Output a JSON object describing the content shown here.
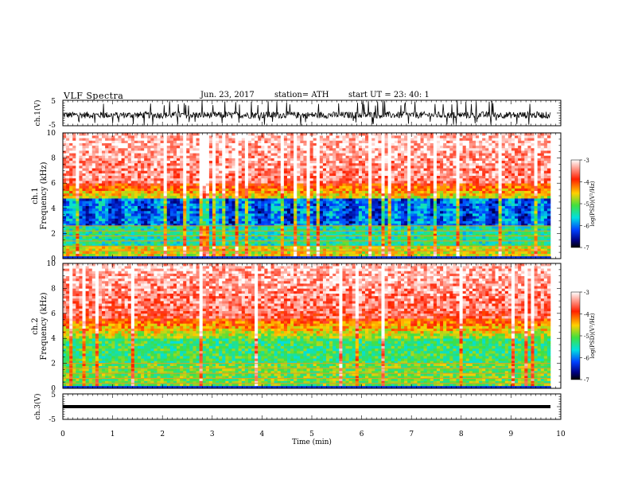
{
  "header": {
    "title": "VLF  Spectra",
    "date": "Jun. 23, 2017",
    "station": "station= ATH",
    "start_ut": "start  UT  =    23: 40: 1"
  },
  "colors": {
    "scale": [
      "#ffffff",
      "#ff2000",
      "#ffd000",
      "#40e040",
      "#00e0e0",
      "#0040ff",
      "#000080",
      "#000000"
    ],
    "trace": "#000000"
  },
  "chart_data": [
    {
      "type": "line",
      "name": "ch1-waveform",
      "ylabel": "ch.1(V)",
      "ylim": [
        -5,
        5
      ],
      "yticks": [
        "5",
        "-5"
      ],
      "description_x": "time 0-9.8 min",
      "x_range": [
        0,
        9.8
      ]
    },
    {
      "type": "heatmap",
      "name": "ch1-spectrogram",
      "ylabel_top": "ch.1",
      "ylabel": "Frequency  (kHz)",
      "ylim": [
        0,
        10
      ],
      "yticks": [
        "0",
        "2",
        "4",
        "6",
        "8",
        "10"
      ],
      "x_range": [
        0,
        9.8
      ],
      "colorbar": {
        "label": "log(PSD)(V²/Hz)",
        "ticks": [
          "-3",
          "-4",
          "-5",
          "-6",
          "-7"
        ],
        "range": [
          -7,
          -3
        ]
      }
    },
    {
      "type": "heatmap",
      "name": "ch2-spectrogram",
      "ylabel_top": "ch.2",
      "ylabel": "Frequency  (kHz)",
      "ylim": [
        0,
        10
      ],
      "yticks": [
        "0",
        "2",
        "4",
        "6",
        "8",
        "10"
      ],
      "x_range": [
        0,
        9.8
      ],
      "colorbar": {
        "label": "log(PSD)(V²/Hz)",
        "ticks": [
          "-3",
          "-4",
          "-5",
          "-6",
          "-7"
        ],
        "range": [
          -7,
          -3
        ]
      }
    },
    {
      "type": "line",
      "name": "ch3-waveform",
      "ylabel": "ch.3(V)",
      "ylim": [
        -5,
        5
      ],
      "yticks": [
        "5",
        "-5"
      ],
      "x_range": [
        0,
        9.8
      ]
    }
  ],
  "xaxis": {
    "label": "Time  (min)",
    "ticks": [
      "0",
      "1",
      "2",
      "3",
      "4",
      "5",
      "6",
      "7",
      "8",
      "9",
      "10"
    ],
    "xlim": [
      0,
      10
    ]
  }
}
